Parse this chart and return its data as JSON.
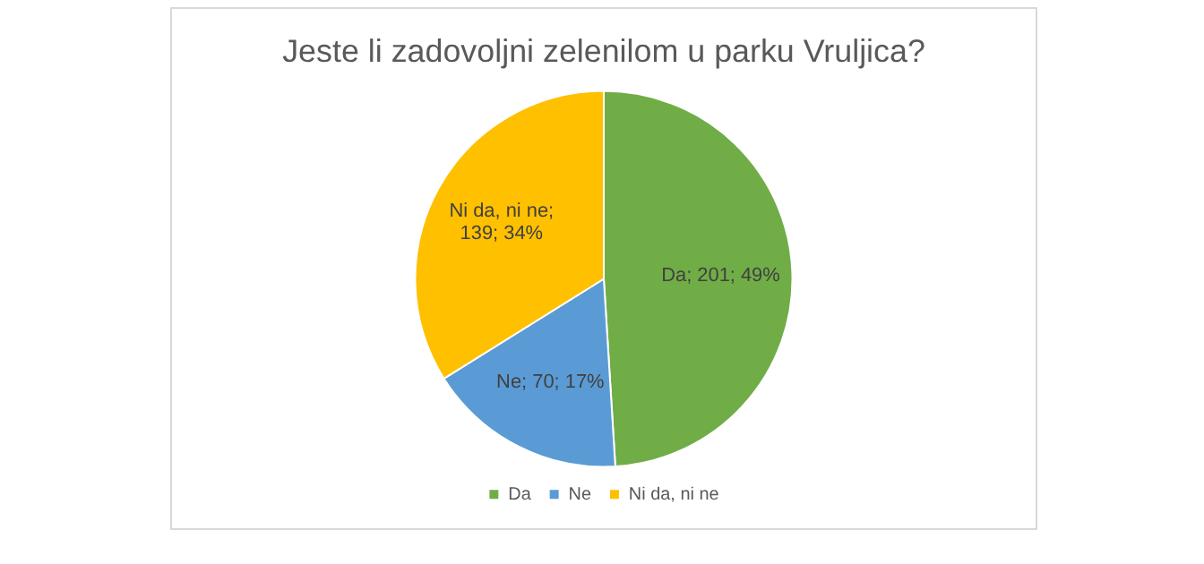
{
  "chart_data": {
    "type": "pie",
    "title": "Jeste li zadovoljni zelenilom u parku Vruljica?",
    "categories": [
      "Da",
      "Ne",
      "Ni da, ni ne"
    ],
    "values": [
      201,
      70,
      139
    ],
    "colors": [
      "#70ad47",
      "#5b9bd5",
      "#ffc000"
    ],
    "value_labels": [
      "Da; 201; 49%",
      "Ne; 70; 17%",
      "Ni da, ni ne; 139; 34%"
    ],
    "legend": "bottom"
  }
}
